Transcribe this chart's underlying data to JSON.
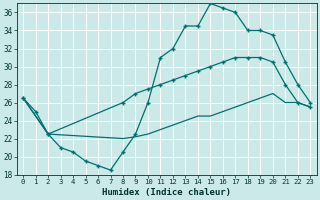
{
  "title": "",
  "xlabel": "Humidex (Indice chaleur)",
  "ylabel": "",
  "xlim": [
    -0.5,
    23.5
  ],
  "ylim": [
    18,
    37
  ],
  "yticks": [
    18,
    20,
    22,
    24,
    26,
    28,
    30,
    32,
    34,
    36
  ],
  "xticks": [
    0,
    1,
    2,
    3,
    4,
    5,
    6,
    7,
    8,
    9,
    10,
    11,
    12,
    13,
    14,
    15,
    16,
    17,
    18,
    19,
    20,
    21,
    22,
    23
  ],
  "bg_color": "#cce9e9",
  "grid_color": "#aacccc",
  "line_color": "#007070",
  "series": [
    {
      "x": [
        0,
        1,
        2,
        3,
        4,
        5,
        6,
        7,
        8,
        9,
        10,
        11,
        12,
        13,
        14,
        15,
        16,
        17,
        18,
        19,
        20,
        21,
        22,
        23
      ],
      "y": [
        26.5,
        25,
        22.5,
        21,
        20.5,
        19.5,
        19,
        18.5,
        20.5,
        22.5,
        26,
        31,
        32,
        34.5,
        34.5,
        37,
        36.5,
        36,
        34,
        34,
        33.5,
        30.5,
        28,
        26
      ],
      "marker": true
    },
    {
      "x": [
        0,
        2,
        8,
        9,
        10,
        11,
        12,
        13,
        14,
        15,
        16,
        17,
        18,
        19,
        20,
        21,
        22,
        23
      ],
      "y": [
        26.5,
        22.5,
        26,
        27,
        27.5,
        28,
        28.5,
        29,
        29.5,
        30,
        30.5,
        31,
        31,
        31,
        30.5,
        28,
        26,
        25.5
      ],
      "marker": true
    },
    {
      "x": [
        0,
        2,
        8,
        9,
        10,
        11,
        12,
        13,
        14,
        15,
        16,
        17,
        18,
        19,
        20,
        21,
        22,
        23
      ],
      "y": [
        26.5,
        22.5,
        22,
        22.2,
        22.5,
        23,
        23.5,
        24,
        24.5,
        24.5,
        25,
        25.5,
        26,
        26.5,
        27,
        26,
        26,
        25.5
      ],
      "marker": false
    }
  ]
}
